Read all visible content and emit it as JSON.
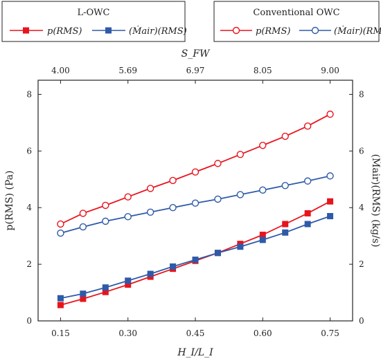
{
  "chart_data": {
    "type": "line",
    "x": [
      0.15,
      0.2,
      0.25,
      0.3,
      0.35,
      0.4,
      0.45,
      0.5,
      0.55,
      0.6,
      0.65,
      0.7,
      0.75
    ],
    "xlabel": "H_I/L_I",
    "xlim": [
      0.1,
      0.8
    ],
    "xticks": [
      0.15,
      0.3,
      0.45,
      0.6,
      0.75
    ],
    "xtick_labels": [
      "0.15",
      "0.30",
      "0.45",
      "0.60",
      "0.75"
    ],
    "top_axis": {
      "label": "S_FW",
      "tick_positions": [
        0.15,
        0.3,
        0.45,
        0.6,
        0.75
      ],
      "tick_labels": [
        "4.00",
        "5.69",
        "6.97",
        "8.05",
        "9.00"
      ]
    },
    "ylabel_left": "p(RMS) (Pa)",
    "ylabel_right": "(Ṁair)(RMS) (kg/s)",
    "ylim": [
      0,
      8.5
    ],
    "yticks": [
      0,
      2,
      4,
      6,
      8
    ],
    "ytick_labels": [
      "0",
      "2",
      "4",
      "6",
      "8"
    ],
    "grid": false,
    "series": [
      {
        "name": "p(RMS)",
        "group": "L-OWC",
        "color": "#e8141c",
        "marker": "square-filled",
        "values": [
          0.56,
          0.78,
          1.02,
          1.28,
          1.56,
          1.84,
          2.12,
          2.4,
          2.72,
          3.04,
          3.42,
          3.8,
          4.22
        ]
      },
      {
        "name": "(Ṁair)(RMS)",
        "group": "L-OWC",
        "color": "#2e5aa8",
        "marker": "square-filled",
        "values": [
          0.8,
          0.96,
          1.18,
          1.42,
          1.66,
          1.92,
          2.16,
          2.4,
          2.62,
          2.86,
          3.12,
          3.42,
          3.7
        ]
      },
      {
        "name": "p(RMS)",
        "group": "Conventional OWC",
        "color": "#e8141c",
        "marker": "circle-open",
        "values": [
          3.42,
          3.8,
          4.08,
          4.38,
          4.68,
          4.96,
          5.26,
          5.56,
          5.88,
          6.2,
          6.52,
          6.88,
          7.3
        ]
      },
      {
        "name": "(Ṁair)(RMS)",
        "group": "Conventional OWC",
        "color": "#2e5aa8",
        "marker": "circle-open",
        "values": [
          3.1,
          3.32,
          3.52,
          3.68,
          3.84,
          4.0,
          4.16,
          4.3,
          4.46,
          4.62,
          4.78,
          4.94,
          5.12
        ]
      }
    ],
    "legends": [
      {
        "title": "L-OWC",
        "entries": [
          "p(RMS)",
          "(Ṁair)(RMS)"
        ]
      },
      {
        "title": "Conventional OWC",
        "entries": [
          "p(RMS)",
          "(Ṁair)(RMS)"
        ]
      }
    ]
  }
}
